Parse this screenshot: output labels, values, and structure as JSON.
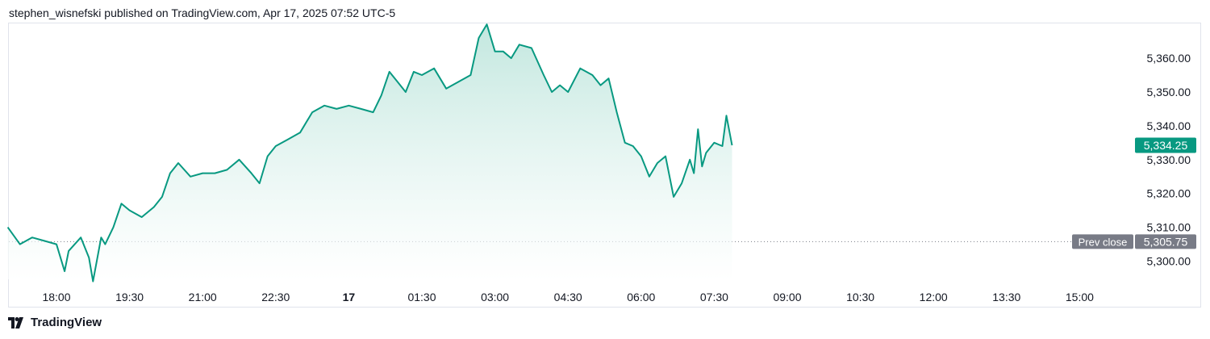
{
  "header": {
    "attribution": "stephen_wisnefski published on TradingView.com, Apr 17, 2025 07:52 UTC-5"
  },
  "footer": {
    "brand": "TradingView",
    "logo_icon": "tradingview-logo-icon"
  },
  "colors": {
    "line": "#089981",
    "fill_top": "#bfe6dd",
    "grid": "#e0e3eb",
    "prev_close": "#787b86",
    "text": "#131722"
  },
  "chart_data": {
    "type": "area",
    "y_axis": {
      "range": [
        5295,
        5368
      ],
      "ticks": [
        {
          "value": 5360,
          "label": "5,360.00"
        },
        {
          "value": 5350,
          "label": "5,350.00"
        },
        {
          "value": 5340,
          "label": "5,340.00"
        },
        {
          "value": 5330,
          "label": "5,330.00"
        },
        {
          "value": 5320,
          "label": "5,320.00"
        },
        {
          "value": 5310,
          "label": "5,310.00"
        },
        {
          "value": 5300,
          "label": "5,300.00"
        }
      ]
    },
    "x_axis": {
      "ticks": [
        {
          "label": "18:00",
          "bold": false
        },
        {
          "label": "19:30",
          "bold": false
        },
        {
          "label": "21:00",
          "bold": false
        },
        {
          "label": "22:30",
          "bold": false
        },
        {
          "label": "17",
          "bold": true
        },
        {
          "label": "01:30",
          "bold": false
        },
        {
          "label": "03:00",
          "bold": false
        },
        {
          "label": "04:30",
          "bold": false
        },
        {
          "label": "06:00",
          "bold": false
        },
        {
          "label": "07:30",
          "bold": false
        },
        {
          "label": "09:00",
          "bold": false
        },
        {
          "label": "10:30",
          "bold": false
        },
        {
          "label": "12:00",
          "bold": false
        },
        {
          "label": "13:30",
          "bold": false
        },
        {
          "label": "15:00",
          "bold": false
        }
      ]
    },
    "series": [
      {
        "points": [
          [
            "17:00",
            5310
          ],
          [
            "17:15",
            5305
          ],
          [
            "17:30",
            5307
          ],
          [
            "17:45",
            5306
          ],
          [
            "18:00",
            5305
          ],
          [
            "18:10",
            5297
          ],
          [
            "18:15",
            5303
          ],
          [
            "18:30",
            5307
          ],
          [
            "18:40",
            5301
          ],
          [
            "18:45",
            5294
          ],
          [
            "18:55",
            5307
          ],
          [
            "19:00",
            5305
          ],
          [
            "19:10",
            5310
          ],
          [
            "19:20",
            5317
          ],
          [
            "19:30",
            5315
          ],
          [
            "19:45",
            5313
          ],
          [
            "20:00",
            5316
          ],
          [
            "20:10",
            5319
          ],
          [
            "20:20",
            5326
          ],
          [
            "20:30",
            5329
          ],
          [
            "20:45",
            5325
          ],
          [
            "21:00",
            5326
          ],
          [
            "21:15",
            5326
          ],
          [
            "21:30",
            5327
          ],
          [
            "21:45",
            5330
          ],
          [
            "22:00",
            5326
          ],
          [
            "22:10",
            5323
          ],
          [
            "22:20",
            5331
          ],
          [
            "22:30",
            5334
          ],
          [
            "22:45",
            5336
          ],
          [
            "23:00",
            5338
          ],
          [
            "23:15",
            5344
          ],
          [
            "23:30",
            5346
          ],
          [
            "23:45",
            5345
          ],
          [
            "00:00",
            5346
          ],
          [
            "00:15",
            5345
          ],
          [
            "00:30",
            5344
          ],
          [
            "00:40",
            5349
          ],
          [
            "00:50",
            5356
          ],
          [
            "01:00",
            5353
          ],
          [
            "01:10",
            5350
          ],
          [
            "01:20",
            5356
          ],
          [
            "01:30",
            5355
          ],
          [
            "01:45",
            5357
          ],
          [
            "02:00",
            5351
          ],
          [
            "02:15",
            5353
          ],
          [
            "02:30",
            5355
          ],
          [
            "02:40",
            5366
          ],
          [
            "02:50",
            5370
          ],
          [
            "03:00",
            5362
          ],
          [
            "03:10",
            5362
          ],
          [
            "03:20",
            5360
          ],
          [
            "03:30",
            5364
          ],
          [
            "03:45",
            5363
          ],
          [
            "04:00",
            5355
          ],
          [
            "04:10",
            5350
          ],
          [
            "04:20",
            5352
          ],
          [
            "04:30",
            5350
          ],
          [
            "04:45",
            5357
          ],
          [
            "05:00",
            5355
          ],
          [
            "05:10",
            5352
          ],
          [
            "05:20",
            5354
          ],
          [
            "05:30",
            5344
          ],
          [
            "05:40",
            5335
          ],
          [
            "05:50",
            5334
          ],
          [
            "06:00",
            5331
          ],
          [
            "06:10",
            5325
          ],
          [
            "06:20",
            5329
          ],
          [
            "06:30",
            5331
          ],
          [
            "06:40",
            5319
          ],
          [
            "06:50",
            5323
          ],
          [
            "07:00",
            5330
          ],
          [
            "07:05",
            5326
          ],
          [
            "07:10",
            5339
          ],
          [
            "07:15",
            5328
          ],
          [
            "07:20",
            5332
          ],
          [
            "07:30",
            5335
          ],
          [
            "07:40",
            5334
          ],
          [
            "07:45",
            5343
          ],
          [
            "07:52",
            5334.25
          ]
        ]
      }
    ],
    "last_price": {
      "label": "5,334.25",
      "value": 5334.25
    },
    "prev_close": {
      "label": "Prev close",
      "value_label": "5,305.75",
      "value": 5305.75
    }
  }
}
